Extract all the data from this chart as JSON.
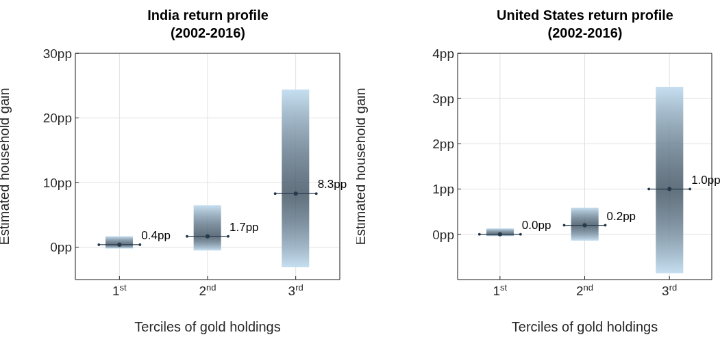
{
  "chart_data": [
    {
      "type": "bar",
      "title": "India return profile\n(2002-2016)",
      "xlabel": "Terciles of gold holdings",
      "ylabel": "Estimated household gain",
      "categories": [
        "1$^{st}$",
        "2$^{nd}$",
        "3$^{rd}$"
      ],
      "ylim": [
        -5,
        30
      ],
      "yticks": [
        {
          "value": 0,
          "label": "0pp"
        },
        {
          "value": 10,
          "label": "10pp"
        },
        {
          "value": 20,
          "label": "20pp"
        },
        {
          "value": 30,
          "label": "30pp"
        }
      ],
      "grid": true,
      "series": [
        {
          "type": "bar",
          "color": "#c6dff0",
          "base": [
            -0.2,
            -0.5,
            -3.1
          ],
          "values": [
            1.9,
            7.0,
            27.5
          ]
        },
        {
          "type": "scatter",
          "color": "#263a4c",
          "values": [
            0.4,
            1.7,
            8.3
          ],
          "value_labels": [
            "0.4pp",
            "1.7pp",
            "8.3pp"
          ]
        }
      ]
    },
    {
      "type": "bar",
      "title": "United States return profile\n(2002-2016)",
      "xlabel": "Terciles of gold holdings",
      "ylabel": "Estimated household gain",
      "categories": [
        "1$^{st}$",
        "2$^{nd}$",
        "3$^{rd}$"
      ],
      "ylim": [
        -1,
        4
      ],
      "yticks": [
        {
          "value": 0,
          "label": "0pp"
        },
        {
          "value": 1,
          "label": "1pp"
        },
        {
          "value": 2,
          "label": "2pp"
        },
        {
          "value": 3,
          "label": "3pp"
        },
        {
          "value": 4,
          "label": "4pp"
        }
      ],
      "grid": true,
      "series": [
        {
          "type": "bar",
          "color": "#c6dff0",
          "base": [
            -0.04,
            -0.14,
            -0.86
          ],
          "values": [
            0.17,
            0.73,
            4.12
          ]
        },
        {
          "type": "scatter",
          "color": "#263a4c",
          "values": [
            0.0,
            0.2,
            1.0
          ],
          "value_labels": [
            "0.0pp",
            "0.2pp",
            "1.0pp"
          ]
        }
      ]
    }
  ]
}
